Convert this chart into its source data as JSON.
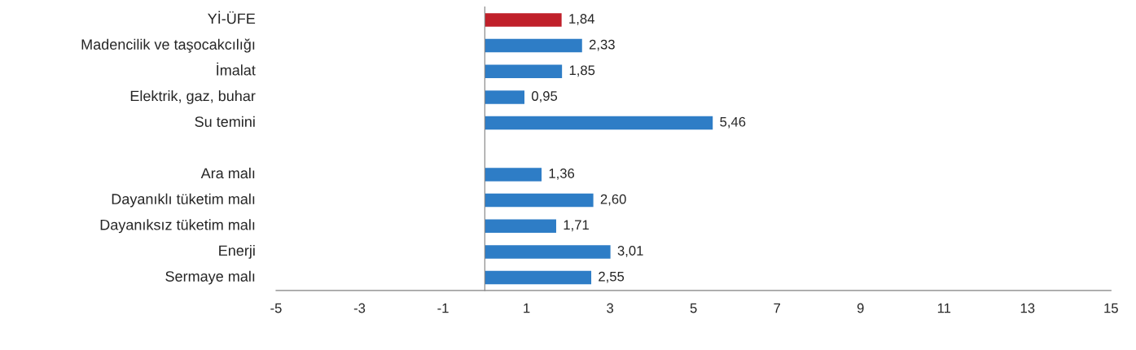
{
  "chart_data": {
    "type": "bar",
    "orientation": "horizontal",
    "categories": [
      "Yİ-ÜFE",
      "Madencilik ve taşocakcılığı",
      "İmalat",
      "Elektrik, gaz, buhar",
      "Su temini",
      null,
      "Ara malı",
      "Dayanıklı tüketim malı",
      "Dayanıksız tüketim malı",
      "Enerji",
      "Sermaye malı"
    ],
    "values": [
      1.84,
      2.33,
      1.85,
      0.95,
      5.46,
      null,
      1.36,
      2.6,
      1.71,
      3.01,
      2.55
    ],
    "colors": [
      "#c0202a",
      "#2e7dc6",
      "#2e7dc6",
      "#2e7dc6",
      "#2e7dc6",
      "#2e7dc6",
      "#2e7dc6",
      "#2e7dc6",
      "#2e7dc6",
      "#2e7dc6",
      "#2e7dc6"
    ],
    "value_labels": [
      "1,84",
      "2,33",
      "1,85",
      "0,95",
      "5,46",
      null,
      "1,36",
      "2,60",
      "1,71",
      "3,01",
      "2,55"
    ],
    "xlim": [
      -5,
      15
    ],
    "xticks": [
      -5,
      -3,
      -1,
      1,
      3,
      5,
      7,
      9,
      11,
      13,
      15
    ],
    "grid": false,
    "legend": false
  }
}
